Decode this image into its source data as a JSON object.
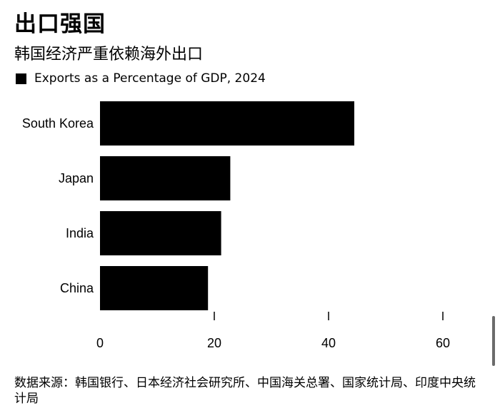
{
  "chart_data": {
    "type": "bar",
    "orientation": "horizontal",
    "title": "出口强国",
    "subtitle": "韩国经济严重依赖海外出口",
    "legend": "Exports as a Percentage of GDP, 2024",
    "categories": [
      "South Korea",
      "Japan",
      "India",
      "China"
    ],
    "series": [
      {
        "name": "Exports as a Percentage of GDP, 2024",
        "values": [
          44.5,
          22.8,
          21.2,
          18.9
        ]
      }
    ],
    "xticks": [
      0,
      20,
      40,
      60
    ],
    "xlim": [
      0,
      60
    ],
    "bar_color": "#000000",
    "grid": false,
    "source": "数据来源：韩国银行、日本经济社会研究所、中国海关总署、国家统计局、印度中央统计局"
  }
}
